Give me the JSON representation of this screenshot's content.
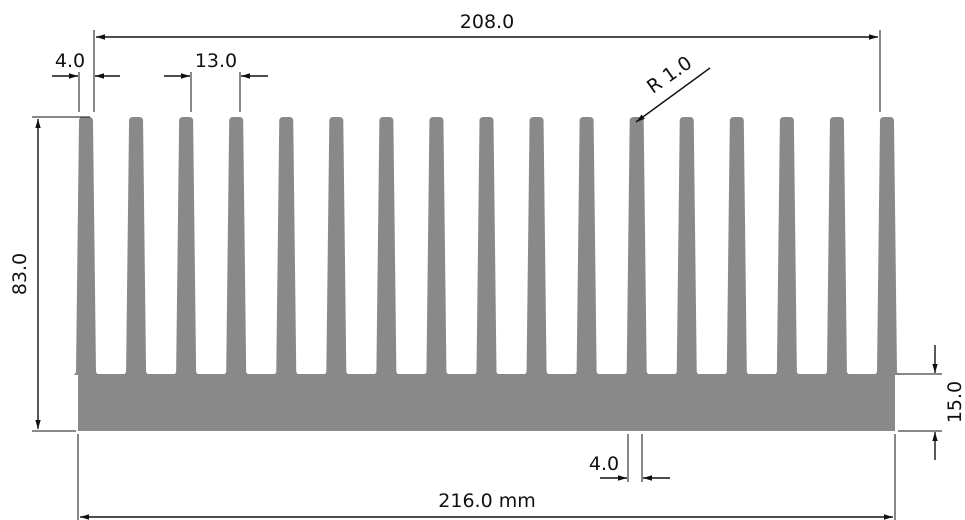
{
  "drawing": {
    "colors": {
      "profile": "#898989",
      "ink": "#111111"
    },
    "fin_count": 17,
    "dimensions": {
      "total_width": "216.0 mm",
      "fin_span": "208.0",
      "fin_thickness": "4.0",
      "fin_pitch": "13.0",
      "height": "83.0",
      "base_thickness": "15.0",
      "fin_gap": "4.0",
      "tip_radius": "R 1.0"
    }
  }
}
